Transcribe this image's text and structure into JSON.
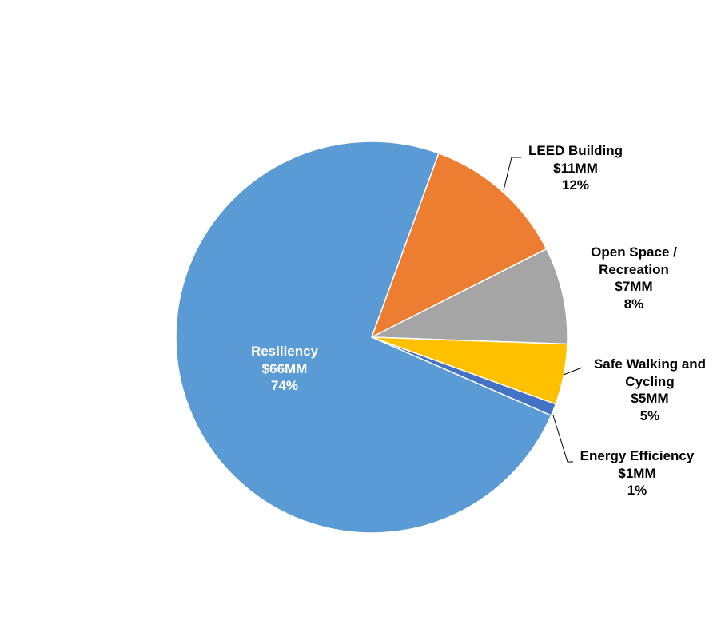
{
  "chart_data": {
    "type": "pie",
    "categories": [
      "LEED Building",
      "Open Space / Recreation",
      "Safe Walking and Cycling",
      "Energy Efficiency",
      "Resiliency"
    ],
    "values": [
      12,
      8,
      5,
      1,
      74
    ],
    "value_labels": [
      "12%",
      "8%",
      "5%",
      "1%",
      "74%"
    ],
    "amount_labels": [
      "$11MM",
      "$7MM",
      "$5MM",
      "$1MM",
      "$66MM"
    ],
    "colors": [
      "#ed7d31",
      "#a5a5a5",
      "#ffc000",
      "#4472c4",
      "#5b9bd5"
    ]
  }
}
